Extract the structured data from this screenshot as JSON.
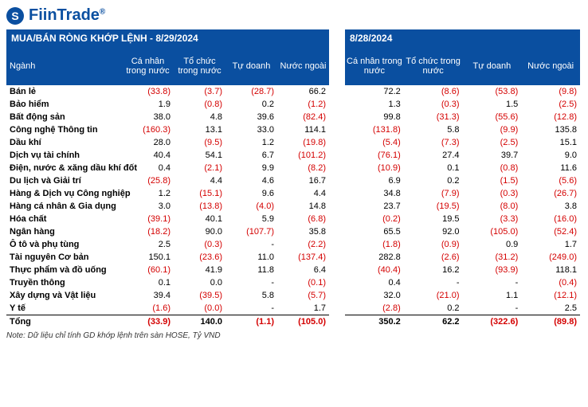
{
  "brand": "FiinTrade",
  "logo_symbol": "S",
  "title_left": "MUA/BÁN RÒNG KHỚP LỆNH - 8/29/2024",
  "title_right": "8/28/2024",
  "footnote": "Note: Dữ liệu chỉ tính GD khớp lệnh trên sàn HOSE, Tỷ VND",
  "columns_left": [
    "Ngành",
    "Cá nhân trong nước",
    "Tổ chức trong nước",
    "Tự doanh",
    "Nước ngoài"
  ],
  "columns_right": [
    "Cá nhân trong nước",
    "Tổ chức trong nước",
    "Tự doanh",
    "Nước ngoài"
  ],
  "sectors": [
    "Bán lẻ",
    "Bảo hiểm",
    "Bất động sản",
    "Công nghệ Thông tin",
    "Dầu khí",
    "Dịch vụ tài chính",
    "Điện, nước & xăng dầu khí đốt",
    "Du lịch và Giải trí",
    "Hàng & Dịch vụ Công nghiệp",
    "Hàng cá nhân & Gia dụng",
    "Hóa chất",
    "Ngân hàng",
    "Ô tô và phụ tùng",
    "Tài nguyên Cơ bản",
    "Thực phẩm và đồ uống",
    "Truyền thông",
    "Xây dựng và Vật liệu",
    "Y tế"
  ],
  "total_label": "Tổng",
  "left": [
    [
      "(33.8)",
      "(3.7)",
      "(28.7)",
      "66.2"
    ],
    [
      "1.9",
      "(0.8)",
      "0.2",
      "(1.2)"
    ],
    [
      "38.0",
      "4.8",
      "39.6",
      "(82.4)"
    ],
    [
      "(160.3)",
      "13.1",
      "33.0",
      "114.1"
    ],
    [
      "28.0",
      "(9.5)",
      "1.2",
      "(19.8)"
    ],
    [
      "40.4",
      "54.1",
      "6.7",
      "(101.2)"
    ],
    [
      "0.4",
      "(2.1)",
      "9.9",
      "(8.2)"
    ],
    [
      "(25.8)",
      "4.4",
      "4.6",
      "16.7"
    ],
    [
      "1.2",
      "(15.1)",
      "9.6",
      "4.4"
    ],
    [
      "3.0",
      "(13.8)",
      "(4.0)",
      "14.8"
    ],
    [
      "(39.1)",
      "40.1",
      "5.9",
      "(6.8)"
    ],
    [
      "(18.2)",
      "90.0",
      "(107.7)",
      "35.8"
    ],
    [
      "2.5",
      "(0.3)",
      "-",
      "(2.2)"
    ],
    [
      "150.1",
      "(23.6)",
      "11.0",
      "(137.4)"
    ],
    [
      "(60.1)",
      "41.9",
      "11.8",
      "6.4"
    ],
    [
      "0.1",
      "0.0",
      "-",
      "(0.1)"
    ],
    [
      "39.4",
      "(39.5)",
      "5.8",
      "(5.7)"
    ],
    [
      "(1.6)",
      "(0.0)",
      "-",
      "1.7"
    ]
  ],
  "left_total": [
    "(33.9)",
    "140.0",
    "(1.1)",
    "(105.0)"
  ],
  "right": [
    [
      "72.2",
      "(8.6)",
      "(53.8)",
      "(9.8)"
    ],
    [
      "1.3",
      "(0.3)",
      "1.5",
      "(2.5)"
    ],
    [
      "99.8",
      "(31.3)",
      "(55.6)",
      "(12.8)"
    ],
    [
      "(131.8)",
      "5.8",
      "(9.9)",
      "135.8"
    ],
    [
      "(5.4)",
      "(7.3)",
      "(2.5)",
      "15.1"
    ],
    [
      "(76.1)",
      "27.4",
      "39.7",
      "9.0"
    ],
    [
      "(10.9)",
      "0.1",
      "(0.8)",
      "11.6"
    ],
    [
      "6.9",
      "0.2",
      "(1.5)",
      "(5.6)"
    ],
    [
      "34.8",
      "(7.9)",
      "(0.3)",
      "(26.7)"
    ],
    [
      "23.7",
      "(19.5)",
      "(8.0)",
      "3.8"
    ],
    [
      "(0.2)",
      "19.5",
      "(3.3)",
      "(16.0)"
    ],
    [
      "65.5",
      "92.0",
      "(105.0)",
      "(52.4)"
    ],
    [
      "(1.8)",
      "(0.9)",
      "0.9",
      "1.7"
    ],
    [
      "282.8",
      "(2.6)",
      "(31.2)",
      "(249.0)"
    ],
    [
      "(40.4)",
      "16.2",
      "(93.9)",
      "118.1"
    ],
    [
      "0.4",
      "-",
      "-",
      "(0.4)"
    ],
    [
      "32.0",
      "(21.0)",
      "1.1",
      "(12.1)"
    ],
    [
      "(2.8)",
      "0.2",
      "-",
      "2.5"
    ]
  ],
  "right_total": [
    "350.2",
    "62.2",
    "(322.6)",
    "(89.8)"
  ],
  "colors": {
    "primary": "#0a4fa0",
    "negative": "#d40000",
    "positive": "#000000",
    "background": "#ffffff"
  },
  "typography": {
    "base_fontsize": 11,
    "title_fontsize": 12,
    "logo_fontsize": 20
  }
}
